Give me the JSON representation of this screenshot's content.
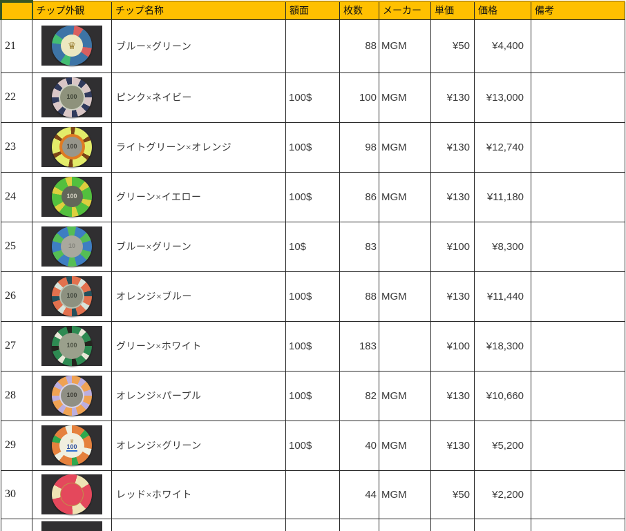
{
  "theme": {
    "header_bg": "#ffc000",
    "header_text": "#111111",
    "grid": "#262626",
    "select_green": "#375623",
    "photo_bg": "#302f31",
    "body_text": "#3a3a3a"
  },
  "header": {
    "cells": [
      "",
      "チップ外観",
      "チップ名称",
      "額面",
      "枚数",
      "メーカー",
      "単価",
      "価格",
      "備考"
    ]
  },
  "rows": [
    {
      "no": "21",
      "name": "ブルー×グリーン",
      "denom": "",
      "qty": "88",
      "maker": "MGM",
      "unit": "¥50",
      "price": "¥4,400",
      "remark": "",
      "chip": {
        "body": "#3d74a6",
        "spots": [
          "#d95f5f",
          "#43bd72",
          "#43bd72",
          "#d95f5f"
        ],
        "sw": 28,
        "off": 35,
        "inner": "#ece7c0",
        "inner_size": 0.55,
        "ring": "",
        "label": "",
        "label_color": "",
        "emblem": "♛",
        "emblem_color": "#9c8136",
        "emblem_size": 14
      }
    },
    {
      "no": "22",
      "name": "ピンク×ネイビー",
      "denom": "100$",
      "qty": "100",
      "maker": "MGM",
      "unit": "¥130",
      "price": "¥13,000",
      "remark": "",
      "chip": {
        "body": "#d9c6c6",
        "spots": [
          "#303a5c",
          "#303a5c",
          "#303a5c",
          "#303a5c",
          "#303a5c",
          "#303a5c",
          "#303a5c",
          "#303a5c"
        ],
        "sw": 18,
        "off": 0,
        "inner": "#8e927c",
        "inner_size": 0.58,
        "ring": "#cfd2c4",
        "label": "100",
        "label_color": "#3c4134"
      }
    },
    {
      "no": "23",
      "name": "ライトグリーン×オレンジ",
      "denom": "100$",
      "qty": "98",
      "maker": "MGM",
      "unit": "¥130",
      "price": "¥12,740",
      "remark": "",
      "chip": {
        "body": "#e3ec6a",
        "spots": [
          "#7b4418",
          "#7b4418",
          "#7b4418",
          "#7b4418",
          "#7b4418",
          "#7b4418"
        ],
        "sw": 13,
        "off": 10,
        "inner": "#97968c",
        "inner_size": 0.5,
        "ring": "#df7b23",
        "ring_w": 4,
        "label": "100",
        "label_color": "#3e3e38"
      }
    },
    {
      "no": "24",
      "name": "グリーン×イエロー",
      "denom": "100$",
      "qty": "86",
      "maker": "MGM",
      "unit": "¥130",
      "price": "¥11,180",
      "remark": "",
      "chip": {
        "body": "#53bf3e",
        "spots": [
          "#ddcf3e",
          "#ddcf3e",
          "#ddcf3e",
          "#ddcf3e",
          "#ddcf3e",
          "#ddcf3e"
        ],
        "sw": 20,
        "off": 0,
        "inner": "#62665a",
        "inner_size": 0.54,
        "ring": "",
        "label": "100",
        "label_color": "#d6d4c4"
      }
    },
    {
      "no": "25",
      "name": "ブルー×グリーン",
      "denom": "10$",
      "qty": "83",
      "maker": "",
      "unit": "¥100",
      "price": "¥8,300",
      "remark": "",
      "chip": {
        "body": "#3e7ec2",
        "spots": [
          "#55bd55",
          "#55bd55",
          "#55bd55",
          "#55bd55",
          "#55bd55",
          "#55bd55"
        ],
        "sw": 26,
        "off": 12,
        "inner": "#a9a89e",
        "inner_size": 0.56,
        "ring": "",
        "label": "10",
        "label_color": "#83837b"
      }
    },
    {
      "no": "26",
      "name": "オレンジ×ブルー",
      "denom": "100$",
      "qty": "88",
      "maker": "MGM",
      "unit": "¥130",
      "price": "¥11,440",
      "remark": "",
      "chip": {
        "body": "#e2714e",
        "spots": [
          "#d8e3da",
          "#24505c",
          "#d8e3da",
          "#24505c",
          "#d8e3da",
          "#24505c",
          "#d8e3da",
          "#24505c"
        ],
        "sw": 17,
        "off": 0,
        "inner": "#8d9180",
        "inner_size": 0.55,
        "ring": "#b8c0b0",
        "label": "100",
        "label_color": "#3e443a"
      }
    },
    {
      "no": "27",
      "name": "グリーン×ホワイト",
      "denom": "100$",
      "qty": "183",
      "maker": "",
      "unit": "¥100",
      "price": "¥18,300",
      "remark": "",
      "chip": {
        "body": "#2e8a52",
        "spots": [
          "#e9e7d8",
          "#24241e",
          "#e9e7d8",
          "#24241e",
          "#e9e7d8",
          "#24241e",
          "#e9e7d8",
          "#24241e"
        ],
        "sw": 16,
        "off": 0,
        "inner": "#9aa08c",
        "inner_size": 0.66,
        "ring": "",
        "label": "100",
        "label_color": "#4a5042"
      }
    },
    {
      "no": "28",
      "name": "オレンジ×パープル",
      "denom": "100$",
      "qty": "82",
      "maker": "MGM",
      "unit": "¥130",
      "price": "¥10,660",
      "remark": "",
      "chip": {
        "body": "#efa253",
        "spots": [
          "#bcaede",
          "#bcaede",
          "#bcaede",
          "#bcaede",
          "#bcaede",
          "#bcaede",
          "#bcaede",
          "#bcaede"
        ],
        "sw": 18,
        "off": 0,
        "inner": "#8f8f84",
        "inner_size": 0.55,
        "ring": "#d8d4e8",
        "label": "100",
        "label_color": "#3d3d36"
      }
    },
    {
      "no": "29",
      "name": "オレンジ×グリーン",
      "denom": "100$",
      "qty": "40",
      "maker": "MGM",
      "unit": "¥130",
      "price": "¥5,200",
      "remark": "",
      "chip": {
        "body": "#e5813d",
        "spots": [
          "#2fa94e",
          "#eef0e2",
          "#2fa94e",
          "#eef0e2",
          "#2fa94e",
          "#eef0e2"
        ],
        "sw": 20,
        "off": 0,
        "inner": "#f1efdf",
        "inner_size": 0.62,
        "ring": "",
        "label": "100",
        "label_color": "#2c4e9e",
        "underline": "#2f6fd0",
        "emblem": "♛",
        "emblem_color": "#b5964e",
        "emblem_size": 7
      }
    },
    {
      "no": "30",
      "name": "レッド×ホワイト",
      "denom": "",
      "qty": "44",
      "maker": "MGM",
      "unit": "¥50",
      "price": "¥2,200",
      "remark": "",
      "chip": {
        "body": "#e4485c",
        "spots": [
          "#efe3b4",
          "#efe3b4",
          "#efe3b4"
        ],
        "sw": 42,
        "off": -62,
        "inner": "#e4485c",
        "inner_size": 0.55,
        "ring": "#c0924a",
        "ring_w": 1,
        "label": "",
        "label_color": ""
      }
    }
  ],
  "partial_next_row": {
    "chip_photo_visible": true
  }
}
